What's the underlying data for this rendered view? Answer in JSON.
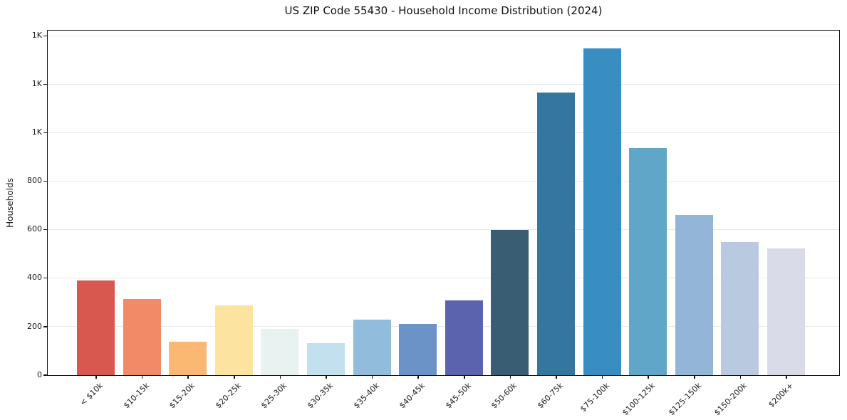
{
  "figure": {
    "title": "US ZIP Code 55430 - Household Income Distribution (2024)"
  },
  "chart_data": {
    "type": "bar",
    "title": "US ZIP Code 55430 - Household Income Distribution (2024)",
    "xlabel": "",
    "ylabel": "Households",
    "categories": [
      "< $10k",
      "$10-15k",
      "$15-20k",
      "$20-25k",
      "$25-30k",
      "$30-35k",
      "$35-40k",
      "$40-45k",
      "$45-50k",
      "$50-60k",
      "$60-75k",
      "$75-100k",
      "$100-125k",
      "$125-150k",
      "$150-200k",
      "$200k+"
    ],
    "values": [
      390,
      315,
      137,
      287,
      192,
      131,
      229,
      213,
      308,
      600,
      1168,
      1349,
      938,
      663,
      551,
      522
    ],
    "bar_colors": [
      "#d8584f",
      "#f28a68",
      "#fab873",
      "#fce3a0",
      "#e7f2f1",
      "#c2e0ee",
      "#92bcdc",
      "#6c93c8",
      "#5c63ae",
      "#395e73",
      "#35769e",
      "#388ec0",
      "#5fa6c8",
      "#92b5d8",
      "#b9c9e0",
      "#dadbe9"
    ],
    "ylim": [
      0,
      1420
    ],
    "yticks": {
      "values": [
        0,
        200,
        400,
        600,
        800,
        1000,
        1200,
        1400
      ],
      "labels": [
        "0",
        "200",
        "400",
        "600",
        "800",
        "1K",
        "1K",
        "1K"
      ]
    },
    "grid": "horizontal",
    "gridline_color": "#e8e8e8",
    "legend": "none",
    "background": "#ffffff",
    "x_tick_rotation_deg": 45
  }
}
